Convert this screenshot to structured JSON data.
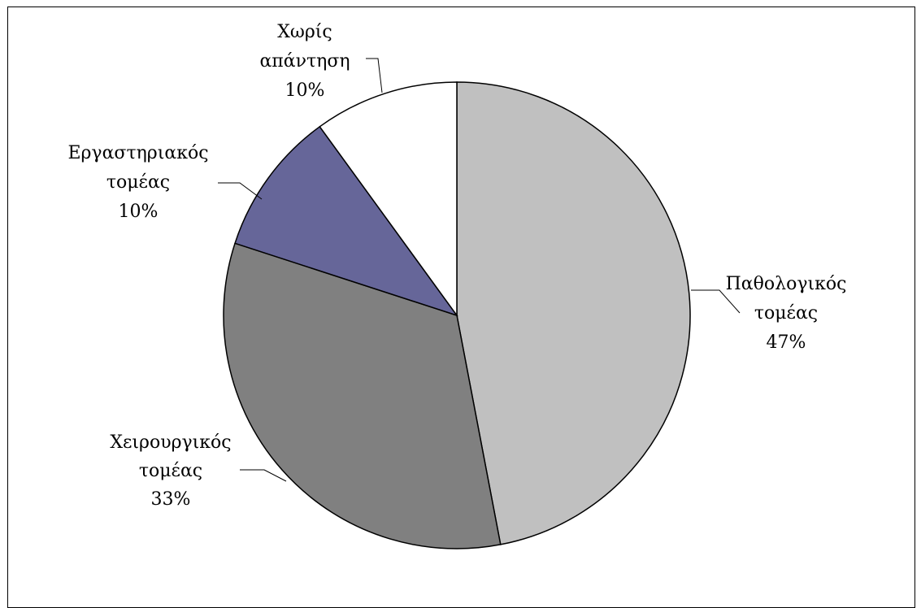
{
  "chart_data": {
    "type": "pie",
    "slices": [
      {
        "label_line1": "Παθολογικός",
        "label_line2": "τομέας",
        "value": 47,
        "value_text": "47%",
        "color": "#c0c0c0"
      },
      {
        "label_line1": "Χειρουργικός",
        "label_line2": "τομέας",
        "value": 33,
        "value_text": "33%",
        "color": "#808080"
      },
      {
        "label_line1": "Εργαστηριακός",
        "label_line2": "τομέας",
        "value": 10,
        "value_text": "10%",
        "color": "#666699"
      },
      {
        "label_line1": "Χωρίς",
        "label_line2": "απάντηση",
        "value": 10,
        "value_text": "10%",
        "color": "#ffffff"
      }
    ],
    "title": "",
    "legend": "none"
  }
}
